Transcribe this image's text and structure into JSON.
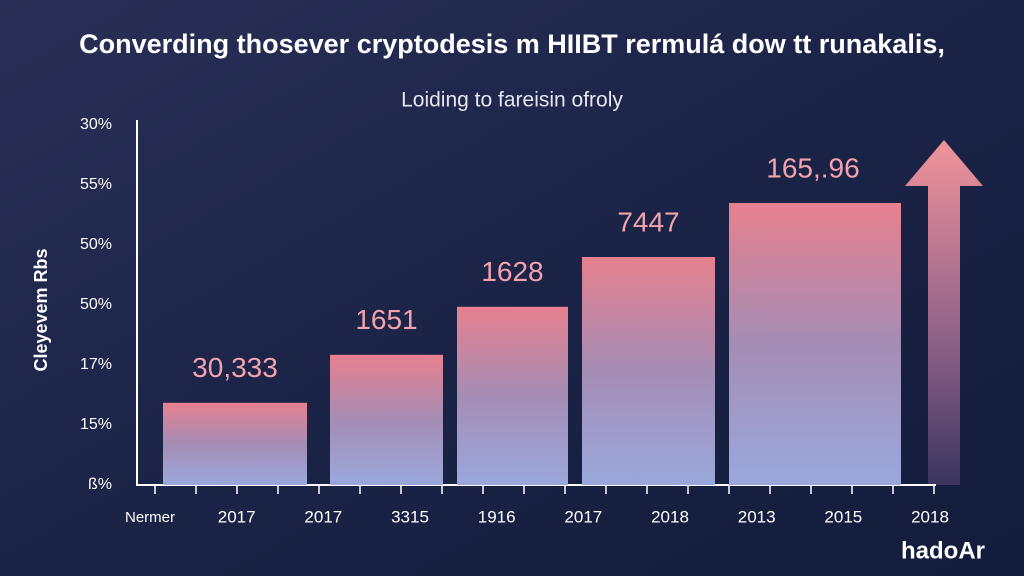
{
  "chart_data": {
    "type": "bar",
    "title": "Converding thosever cryptodesis m HIIBT rermulá dow tt runakalis,",
    "subtitle": "Loiding to fareisin ofroly",
    "y_axis_label": "Cleyevem Rbs",
    "y_labels": [
      "30%",
      "55%",
      "50%",
      "50%",
      "17%",
      "15%",
      "ß%"
    ],
    "ylim": [
      0,
      6
    ],
    "values": [
      1.37,
      2.17,
      2.97,
      3.8,
      4.7
    ],
    "bar_labels": [
      "30,333",
      "1651",
      "1628",
      "7447",
      "165,.96"
    ],
    "x_labels": [
      "Nermer",
      "2017",
      "2017",
      "3315",
      "1916",
      "2017",
      "2018",
      "2013",
      "2015",
      "2018"
    ],
    "brand": "hadoAr"
  }
}
